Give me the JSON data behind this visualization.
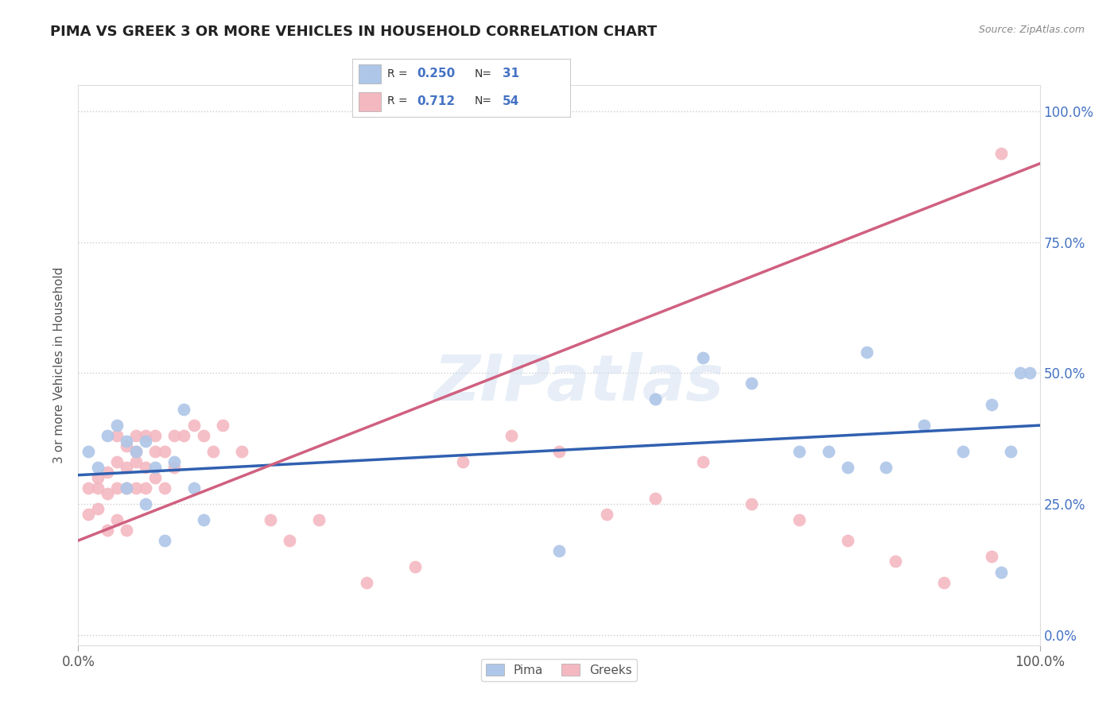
{
  "title": "PIMA VS GREEK 3 OR MORE VEHICLES IN HOUSEHOLD CORRELATION CHART",
  "source_text": "Source: ZipAtlas.com",
  "ylabel": "3 or more Vehicles in Household",
  "watermark": "ZIPatlas",
  "xlim": [
    0,
    100
  ],
  "ylim": [
    -2,
    105
  ],
  "ytick_labels": [
    "0.0%",
    "25.0%",
    "50.0%",
    "75.0%",
    "100.0%"
  ],
  "ytick_values": [
    0,
    25,
    50,
    75,
    100
  ],
  "xtick_labels": [
    "0.0%",
    "100.0%"
  ],
  "grid_color": "#cccccc",
  "background_color": "#ffffff",
  "pima_color": "#aec6e8",
  "greek_color": "#f4b8c1",
  "pima_line_color": "#3060b0",
  "greek_line_color": "#d06080",
  "pima_R": 0.25,
  "pima_N": 31,
  "greek_R": 0.712,
  "greek_N": 54,
  "pima_legend_label": "Pima",
  "greek_legend_label": "Greeks",
  "legend_text_color": "#4472c4",
  "pima_x": [
    1,
    2,
    3,
    4,
    5,
    5,
    6,
    7,
    7,
    8,
    9,
    10,
    11,
    12,
    13,
    50,
    60,
    65,
    70,
    75,
    78,
    80,
    82,
    84,
    88,
    92,
    95,
    96,
    97,
    98,
    99
  ],
  "pima_y": [
    35,
    32,
    38,
    40,
    28,
    37,
    35,
    37,
    25,
    32,
    18,
    33,
    43,
    28,
    22,
    16,
    45,
    53,
    48,
    35,
    35,
    32,
    54,
    32,
    40,
    35,
    44,
    12,
    35,
    50,
    50
  ],
  "greek_x": [
    1,
    1,
    2,
    2,
    2,
    3,
    3,
    3,
    4,
    4,
    4,
    4,
    5,
    5,
    5,
    5,
    6,
    6,
    6,
    6,
    7,
    7,
    7,
    8,
    8,
    8,
    9,
    9,
    10,
    10,
    11,
    12,
    13,
    14,
    15,
    17,
    20,
    22,
    25,
    30,
    35,
    40,
    45,
    50,
    55,
    60,
    65,
    70,
    75,
    80,
    85,
    90,
    95,
    96
  ],
  "greek_y": [
    23,
    28,
    24,
    28,
    30,
    20,
    27,
    31,
    22,
    28,
    33,
    38,
    20,
    28,
    32,
    36,
    28,
    33,
    35,
    38,
    28,
    32,
    38,
    30,
    35,
    38,
    28,
    35,
    32,
    38,
    38,
    40,
    38,
    35,
    40,
    35,
    22,
    18,
    22,
    10,
    13,
    33,
    38,
    35,
    23,
    26,
    33,
    25,
    22,
    18,
    14,
    10,
    15,
    92
  ],
  "pima_intercept": 30.5,
  "pima_slope": 0.095,
  "greek_intercept": 18.0,
  "greek_slope": 0.72
}
